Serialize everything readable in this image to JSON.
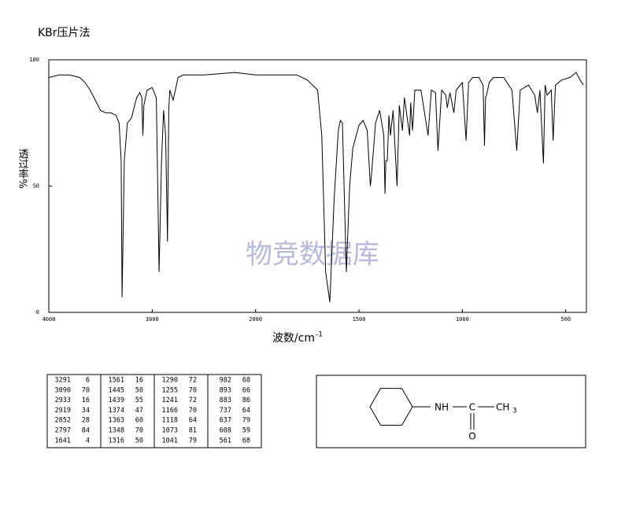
{
  "chart_data": {
    "type": "line",
    "title": "KBr压片法",
    "x_label": "波数/cm",
    "x_label_superscript": "-1",
    "y_label": "透过率%",
    "watermark": "物竞数据库",
    "color": "#000000",
    "x_scale": {
      "break": 2000,
      "factor": 2
    },
    "xlim": [
      4000,
      400
    ],
    "xticks": [
      4000,
      3000,
      2000,
      1500,
      1000,
      500
    ],
    "ylim": [
      0,
      100
    ],
    "yticks": [
      0,
      50,
      100
    ],
    "x": [
      4000,
      3900,
      3800,
      3700,
      3650,
      3600,
      3550,
      3500,
      3450,
      3400,
      3350,
      3320,
      3300,
      3291,
      3270,
      3240,
      3200,
      3150,
      3120,
      3100,
      3090,
      3080,
      3050,
      3000,
      2960,
      2933,
      2910,
      2890,
      2870,
      2852,
      2840,
      2830,
      2797,
      2750,
      2700,
      2500,
      2200,
      2000,
      1800,
      1750,
      1700,
      1680,
      1661,
      1641,
      1620,
      1600,
      1590,
      1580,
      1561,
      1545,
      1530,
      1500,
      1480,
      1460,
      1445,
      1439,
      1420,
      1400,
      1380,
      1374,
      1370,
      1363,
      1355,
      1348,
      1335,
      1316,
      1305,
      1290,
      1280,
      1255,
      1250,
      1241,
      1230,
      1200,
      1166,
      1150,
      1130,
      1118,
      1100,
      1080,
      1073,
      1060,
      1041,
      1030,
      1000,
      982,
      970,
      950,
      920,
      900,
      893,
      888,
      883,
      870,
      850,
      800,
      760,
      737,
      720,
      680,
      650,
      637,
      625,
      608,
      600,
      590,
      570,
      561,
      550,
      520,
      480,
      450,
      430,
      415
    ],
    "values": [
      93,
      94,
      94,
      93,
      91,
      88,
      84,
      80,
      79,
      79,
      78,
      75,
      60,
      6,
      60,
      75,
      77,
      85,
      87,
      85,
      70,
      82,
      88,
      89,
      85,
      16,
      60,
      80,
      70,
      28,
      80,
      88,
      84,
      93,
      94,
      94,
      95,
      94,
      94,
      92,
      88,
      70,
      16,
      4,
      45,
      72,
      76,
      75,
      16,
      50,
      65,
      74,
      76,
      72,
      50,
      55,
      75,
      80,
      70,
      47,
      60,
      60,
      78,
      70,
      80,
      50,
      82,
      72,
      85,
      70,
      83,
      72,
      88,
      88,
      70,
      88,
      87,
      64,
      88,
      86,
      81,
      87,
      79,
      88,
      91,
      68,
      91,
      93,
      93,
      90,
      66,
      85,
      86,
      91,
      93,
      93,
      88,
      64,
      88,
      90,
      86,
      79,
      88,
      59,
      90,
      86,
      88,
      68,
      90,
      92,
      93,
      95,
      92,
      90
    ]
  },
  "peak_table": {
    "rows": [
      [
        3291,
        6,
        1561,
        16,
        1290,
        72,
        982,
        68
      ],
      [
        3090,
        70,
        1445,
        50,
        1255,
        70,
        893,
        66
      ],
      [
        2933,
        16,
        1439,
        55,
        1241,
        72,
        883,
        86
      ],
      [
        2919,
        34,
        1374,
        47,
        1166,
        70,
        737,
        64
      ],
      [
        2852,
        28,
        1363,
        60,
        1118,
        64,
        637,
        79
      ],
      [
        2797,
        84,
        1348,
        70,
        1073,
        81,
        608,
        59
      ],
      [
        1641,
        4,
        1316,
        50,
        1041,
        79,
        561,
        68
      ]
    ]
  },
  "structure": {
    "amine": "NH",
    "carbon": "C",
    "methyl": "CH",
    "methyl_subscript": "3",
    "oxygen": "O"
  }
}
